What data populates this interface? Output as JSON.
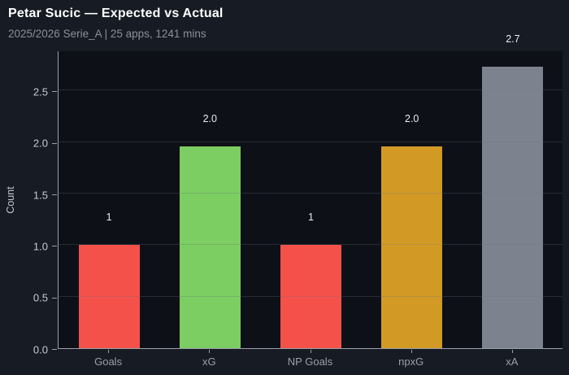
{
  "header": {
    "title": "Petar Sucic — Expected vs Actual",
    "subtitle": "2025/2026 Serie_A | 25 apps, 1241 mins"
  },
  "chart_data": {
    "type": "bar",
    "title": "Petar Sucic — Expected vs Actual",
    "subtitle": "2025/2026 Serie_A | 25 apps, 1241 mins",
    "xlabel": "",
    "ylabel": "Count",
    "categories": [
      "Goals",
      "xG",
      "NP Goals",
      "npxG",
      "xA"
    ],
    "values": [
      1.0,
      1.96,
      1.0,
      1.96,
      2.73
    ],
    "value_labels": [
      "1",
      "2.0",
      "1",
      "2.0",
      "2.7"
    ],
    "bar_colors": [
      "#f5514b",
      "#7ccd62",
      "#f5514b",
      "#d29a24",
      "#7d838e"
    ],
    "ylim": [
      0,
      2.89
    ],
    "yticks": [
      "0.0",
      "0.5",
      "1.0",
      "1.5",
      "2.0",
      "2.5"
    ],
    "ytick_values": [
      0,
      0.5,
      1.0,
      1.5,
      2.0,
      2.5
    ],
    "grid": true,
    "legend_position": "none"
  },
  "colors": {
    "background": "#171b23",
    "plot_background": "#0d1117",
    "axis": "#9aa0a8",
    "title": "#ffffff",
    "subtitle": "#8a9099",
    "ytick_label": "#c6cad0",
    "xtick_label": "#98a0aa",
    "value_label": "#e9ecef",
    "bar_red": "#f5514b",
    "bar_green": "#7ccd62",
    "bar_gold": "#d29a24",
    "bar_gray": "#7d838e"
  }
}
